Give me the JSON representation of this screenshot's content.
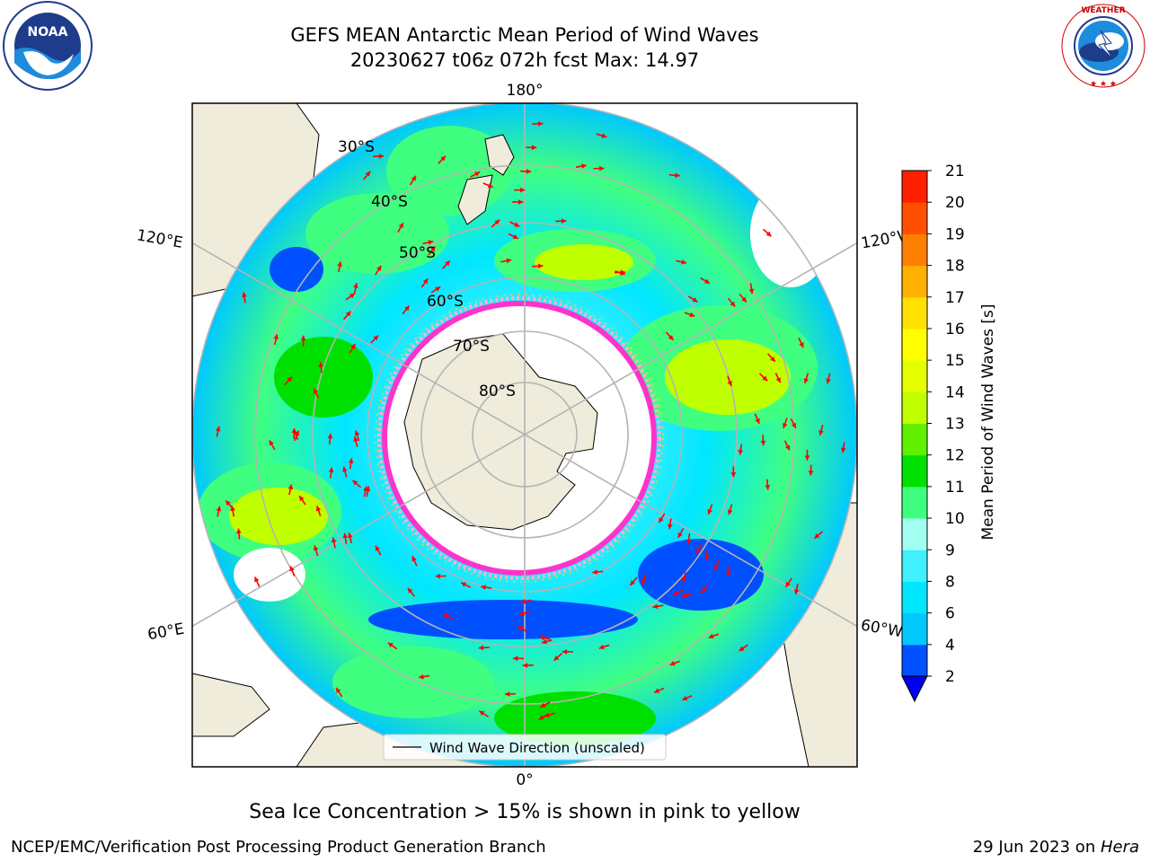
{
  "title": {
    "line1": "GEFS MEAN Antarctic Mean Period of Wind Waves",
    "line2": "20230627 t06z 072h fcst   Max: 14.97"
  },
  "map": {
    "projection": "south-polar-stereographic",
    "meridian_labels": {
      "top": "180°",
      "bottom": "0°",
      "upper_left": "120°E",
      "upper_right": "120°W",
      "lower_left": "60°E",
      "lower_right": "60°W"
    },
    "parallel_labels": [
      "30°S",
      "40°S",
      "50°S",
      "60°S",
      "70°S",
      "80°S"
    ],
    "legend_label": "Wind Wave Direction (unscaled)",
    "arrow_color": "#ff0000",
    "land_color": "#efecdc",
    "ice_colors": [
      "#ff33cc",
      "#ffb0d0",
      "#ffdd00"
    ]
  },
  "colorbar": {
    "label": "Mean Period of Wind Waves [s]",
    "ticks": [
      "2",
      "4",
      "6",
      "8",
      "9",
      "10",
      "11",
      "12",
      "13",
      "14",
      "15",
      "16",
      "17",
      "18",
      "19",
      "20",
      "21"
    ],
    "colors": [
      "#0050ff",
      "#00c8ff",
      "#00e6ff",
      "#40f0ff",
      "#a0fff0",
      "#40ff80",
      "#00e000",
      "#60f000",
      "#c0ff00",
      "#e6ff00",
      "#ffff00",
      "#ffe000",
      "#ffb000",
      "#ff8000",
      "#ff5000",
      "#ff2000"
    ],
    "under_color": "#0000f0"
  },
  "footer": {
    "ice_note": "Sea Ice Concentration > 15% is shown in pink to yellow",
    "credit_left": "NCEP/EMC/Verification Post Processing Product Generation Branch",
    "date": "29 Jun 2023 on ",
    "machine": "Hera"
  }
}
